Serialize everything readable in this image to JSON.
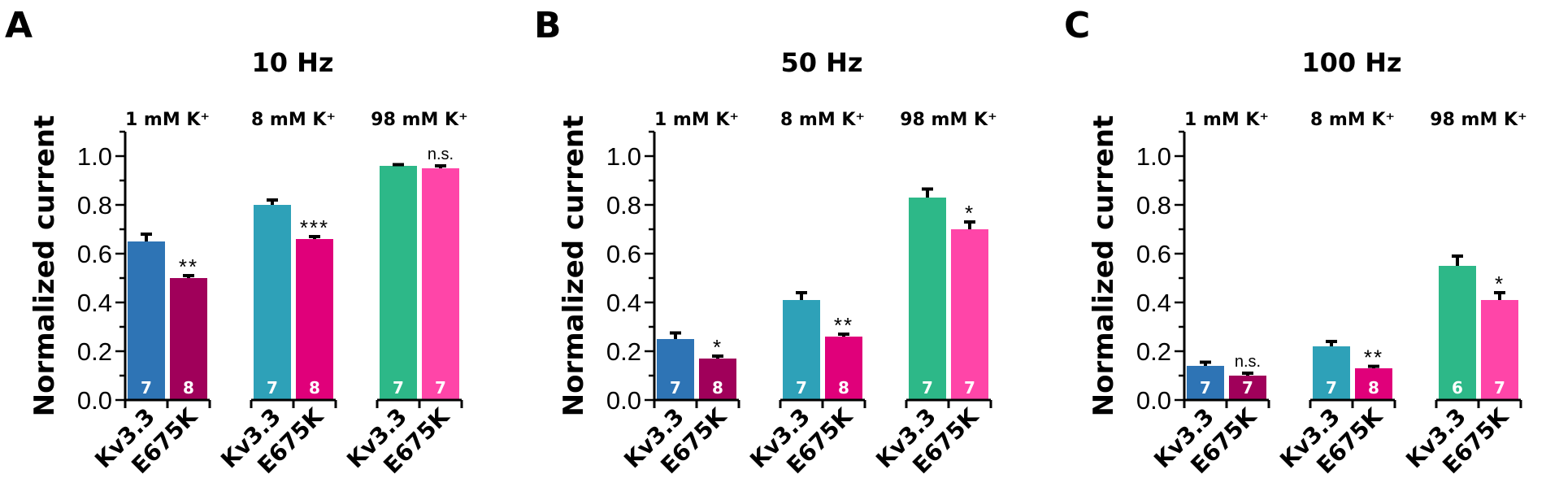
{
  "chart_data": [
    {
      "type": "bar",
      "panel_label": "A",
      "title": "10 Hz",
      "ylabel": "Normalized current",
      "ylim": [
        0,
        1.1
      ],
      "yticks": [
        "0.0",
        "0.2",
        "0.4",
        "0.6",
        "0.8",
        "1.0"
      ],
      "groups": [
        {
          "label": "1 mM K⁺",
          "bars": [
            {
              "name": "Kv3.3",
              "value": 0.65,
              "error": 0.03,
              "n": "7",
              "color": "#2e74b5"
            },
            {
              "name": "E675K",
              "value": 0.5,
              "error": 0.01,
              "n": "8",
              "color": "#a0005a",
              "sig": "**"
            }
          ]
        },
        {
          "label": "8 mM K⁺",
          "bars": [
            {
              "name": "Kv3.3",
              "value": 0.8,
              "error": 0.02,
              "n": "7",
              "color": "#2ea1b8"
            },
            {
              "name": "E675K",
              "value": 0.66,
              "error": 0.01,
              "n": "8",
              "color": "#e0007a",
              "sig": "***"
            }
          ]
        },
        {
          "label": "98 mM K⁺",
          "bars": [
            {
              "name": "Kv3.3",
              "value": 0.96,
              "error": 0.005,
              "n": "7",
              "color": "#2db888"
            },
            {
              "name": "E675K",
              "value": 0.95,
              "error": 0.01,
              "n": "7",
              "color": "#ff45a8",
              "sig": "n.s."
            }
          ]
        }
      ]
    },
    {
      "type": "bar",
      "panel_label": "B",
      "title": "50 Hz",
      "ylabel": "Normalized current",
      "ylim": [
        0,
        1.1
      ],
      "yticks": [
        "0.0",
        "0.2",
        "0.4",
        "0.6",
        "0.8",
        "1.0"
      ],
      "groups": [
        {
          "label": "1 mM K⁺",
          "bars": [
            {
              "name": "Kv3.3",
              "value": 0.25,
              "error": 0.025,
              "n": "7",
              "color": "#2e74b5"
            },
            {
              "name": "E675K",
              "value": 0.17,
              "error": 0.01,
              "n": "8",
              "color": "#a0005a",
              "sig": "*"
            }
          ]
        },
        {
          "label": "8 mM K⁺",
          "bars": [
            {
              "name": "Kv3.3",
              "value": 0.41,
              "error": 0.03,
              "n": "7",
              "color": "#2ea1b8"
            },
            {
              "name": "E675K",
              "value": 0.26,
              "error": 0.01,
              "n": "8",
              "color": "#e0007a",
              "sig": "**"
            }
          ]
        },
        {
          "label": "98 mM K⁺",
          "bars": [
            {
              "name": "Kv3.3",
              "value": 0.83,
              "error": 0.035,
              "n": "7",
              "color": "#2db888"
            },
            {
              "name": "E675K",
              "value": 0.7,
              "error": 0.03,
              "n": "7",
              "color": "#ff45a8",
              "sig": "*"
            }
          ]
        }
      ]
    },
    {
      "type": "bar",
      "panel_label": "C",
      "title": "100 Hz",
      "ylabel": "Normalized current",
      "ylim": [
        0,
        1.1
      ],
      "yticks": [
        "0.0",
        "0.2",
        "0.4",
        "0.6",
        "0.8",
        "1.0"
      ],
      "groups": [
        {
          "label": "1 mM K⁺",
          "bars": [
            {
              "name": "Kv3.3",
              "value": 0.14,
              "error": 0.015,
              "n": "7",
              "color": "#2e74b5"
            },
            {
              "name": "E675K",
              "value": 0.1,
              "error": 0.01,
              "n": "7",
              "color": "#a0005a",
              "sig": "n.s."
            }
          ]
        },
        {
          "label": "8 mM K⁺",
          "bars": [
            {
              "name": "Kv3.3",
              "value": 0.22,
              "error": 0.02,
              "n": "7",
              "color": "#2ea1b8"
            },
            {
              "name": "E675K",
              "value": 0.13,
              "error": 0.008,
              "n": "8",
              "color": "#e0007a",
              "sig": "**"
            }
          ]
        },
        {
          "label": "98 mM K⁺",
          "bars": [
            {
              "name": "Kv3.3",
              "value": 0.55,
              "error": 0.04,
              "n": "6",
              "color": "#2db888"
            },
            {
              "name": "E675K",
              "value": 0.41,
              "error": 0.03,
              "n": "7",
              "color": "#ff45a8",
              "sig": "*"
            }
          ]
        }
      ]
    }
  ]
}
